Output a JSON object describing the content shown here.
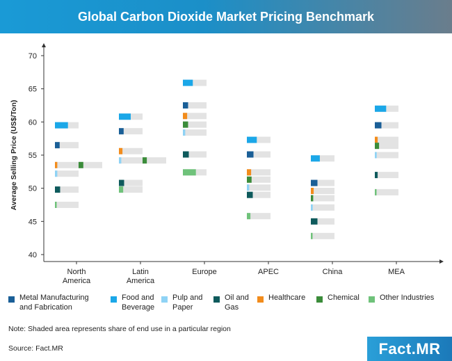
{
  "title": "Global Carbon Dioxide Market Pricing Benchmark",
  "note": "Note: Shaded area represents share of end use in a particular region",
  "source": "Source: Fact.MR",
  "brand": {
    "name": "Fact",
    "suffix": ".MR"
  },
  "chart_data": {
    "type": "scatter",
    "title": "Global Carbon Dioxide Market Pricing Benchmark",
    "ylabel": "Average Selling Price (US$/Ton)",
    "xlabel": "",
    "ylim": [
      40,
      70
    ],
    "yticks": [
      40,
      45,
      50,
      55,
      60,
      65,
      70
    ],
    "categories": [
      {
        "label": [
          "North",
          "America"
        ]
      },
      {
        "label": [
          "Latin",
          "America"
        ]
      },
      {
        "label": [
          "Europe"
        ]
      },
      {
        "label": [
          "APEC"
        ]
      },
      {
        "label": [
          "China"
        ]
      },
      {
        "label": [
          "MEA"
        ]
      }
    ],
    "series": [
      {
        "name": "Metal Manufacturing and Fabrication",
        "label_lines": [
          "Metal Manufacturing",
          "and Fabrication"
        ],
        "color": "#1a5f97",
        "values": [
          56.5,
          58.6,
          62.5,
          55.1,
          50.8,
          59.5
        ],
        "share": [
          0.2,
          0.2,
          0.22,
          0.28,
          0.28,
          0.28
        ]
      },
      {
        "name": "Food and Beverage",
        "label_lines": [
          "Food and",
          "Beverage"
        ],
        "color": "#1ba7e8",
        "values": [
          59.5,
          60.8,
          65.9,
          57.3,
          54.5,
          62.0
        ],
        "share": [
          0.55,
          0.5,
          0.42,
          0.42,
          0.38,
          0.48
        ]
      },
      {
        "name": "Pulp and Paper",
        "label_lines": [
          "Pulp and",
          "Paper"
        ],
        "color": "#8fd3f5",
        "values": [
          52.2,
          54.2,
          58.4,
          50.1,
          47.1,
          55.0
        ],
        "share": [
          0.1,
          0.1,
          0.1,
          0.1,
          0.08,
          0.08
        ]
      },
      {
        "name": "Oil and Gas",
        "label_lines": [
          "Oil and",
          "Gas"
        ],
        "color": "#0e5a5c",
        "values": [
          49.8,
          50.8,
          55.1,
          49.0,
          45.0,
          52.0
        ],
        "share": [
          0.22,
          0.22,
          0.25,
          0.25,
          0.28,
          0.12
        ]
      },
      {
        "name": "Healthcare",
        "label_lines": [
          "Healthcare"
        ],
        "color": "#f28c1c",
        "values": [
          53.5,
          55.6,
          60.9,
          52.4,
          49.6,
          57.3
        ],
        "share": [
          0.1,
          0.15,
          0.18,
          0.18,
          0.12,
          0.12
        ]
      },
      {
        "name": "Chemical",
        "label_lines": [
          "Chemical"
        ],
        "color": "#3b8c3a",
        "values": [
          53.5,
          54.2,
          59.6,
          51.3,
          48.5,
          56.4
        ],
        "share": [
          0.2,
          0.18,
          0.22,
          0.2,
          0.1,
          0.18
        ]
      },
      {
        "name": "Other Industries",
        "label_lines": [
          "Other Industries"
        ],
        "color": "#6fc27a",
        "values": [
          47.5,
          49.8,
          52.4,
          45.8,
          42.8,
          49.4
        ],
        "share": [
          0.05,
          0.18,
          0.55,
          0.15,
          0.05,
          0.05
        ]
      }
    ],
    "offset_right": [
      {
        "category": 0,
        "series": 5
      },
      {
        "category": 1,
        "series": 5
      }
    ],
    "legend_position": "bottom",
    "grid": false
  }
}
